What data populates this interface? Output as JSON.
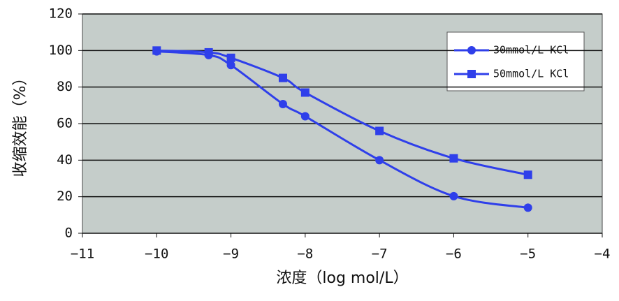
{
  "chart_data": {
    "type": "line",
    "x_label": "浓度（log mol/L）",
    "y_label": "收缩效能（%）",
    "xlim": [
      -11,
      -4
    ],
    "xticks": [
      {
        "value": -11,
        "label": "−11"
      },
      {
        "value": -10,
        "label": "−10"
      },
      {
        "value": -9,
        "label": "−9"
      },
      {
        "value": -8,
        "label": "−8"
      },
      {
        "value": -7,
        "label": "−7"
      },
      {
        "value": -6,
        "label": "−6"
      },
      {
        "value": -5,
        "label": "−5"
      },
      {
        "value": -4,
        "label": "−4"
      }
    ],
    "ylim": [
      0,
      120
    ],
    "yticks": [
      0,
      20,
      40,
      60,
      80,
      100,
      120
    ],
    "grid": true,
    "legend": "upper right",
    "series": [
      {
        "name": "30mmol/L KCl",
        "color": "#2f3fea",
        "marker": "circle",
        "x": [
          -10,
          -9.3,
          -9,
          -8.3,
          -8,
          -7,
          -6,
          -5
        ],
        "values": [
          99.5,
          97.5,
          92,
          70.7,
          64,
          40,
          20.3,
          14
        ]
      },
      {
        "name": "50mmol/L KCl",
        "color": "#2f3fea",
        "marker": "square",
        "x": [
          -10,
          -9.3,
          -9,
          -8.3,
          -8,
          -7,
          -6,
          -5
        ],
        "values": [
          100,
          99,
          96,
          85,
          77,
          56,
          41,
          32
        ]
      }
    ]
  }
}
